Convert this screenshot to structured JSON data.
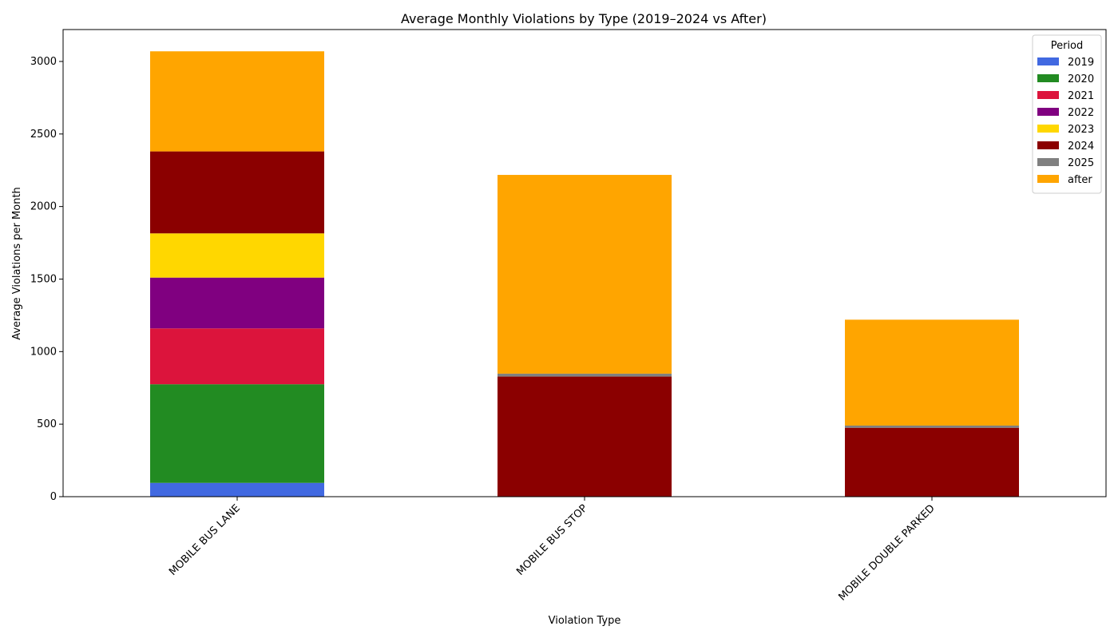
{
  "chart_data": {
    "type": "bar",
    "stacked": true,
    "title": "Average Monthly Violations by Type (2019–2024 vs After)",
    "xlabel": "Violation Type",
    "ylabel": "Average Violations per Month",
    "categories": [
      "MOBILE BUS LANE",
      "MOBILE BUS STOP",
      "MOBILE DOUBLE PARKED"
    ],
    "ylim": [
      0,
      3220
    ],
    "yticks": [
      0,
      500,
      1000,
      1500,
      2000,
      2500,
      3000
    ],
    "grid": false,
    "legend": {
      "title": "Period",
      "placement": "top-right"
    },
    "series": [
      {
        "name": "2019",
        "color": "#4169e1",
        "values": [
          95,
          0,
          0
        ]
      },
      {
        "name": "2020",
        "color": "#228b22",
        "values": [
          680,
          0,
          0
        ]
      },
      {
        "name": "2021",
        "color": "#dc143c",
        "values": [
          385,
          0,
          0
        ]
      },
      {
        "name": "2022",
        "color": "#800080",
        "values": [
          350,
          0,
          0
        ]
      },
      {
        "name": "2023",
        "color": "#ffd700",
        "values": [
          305,
          0,
          0
        ]
      },
      {
        "name": "2024",
        "color": "#8b0000",
        "values": [
          565,
          828,
          475
        ]
      },
      {
        "name": "2025",
        "color": "#808080",
        "values": [
          0,
          20,
          15
        ]
      },
      {
        "name": "after",
        "color": "#ffa500",
        "values": [
          690,
          1370,
          730
        ]
      }
    ]
  }
}
